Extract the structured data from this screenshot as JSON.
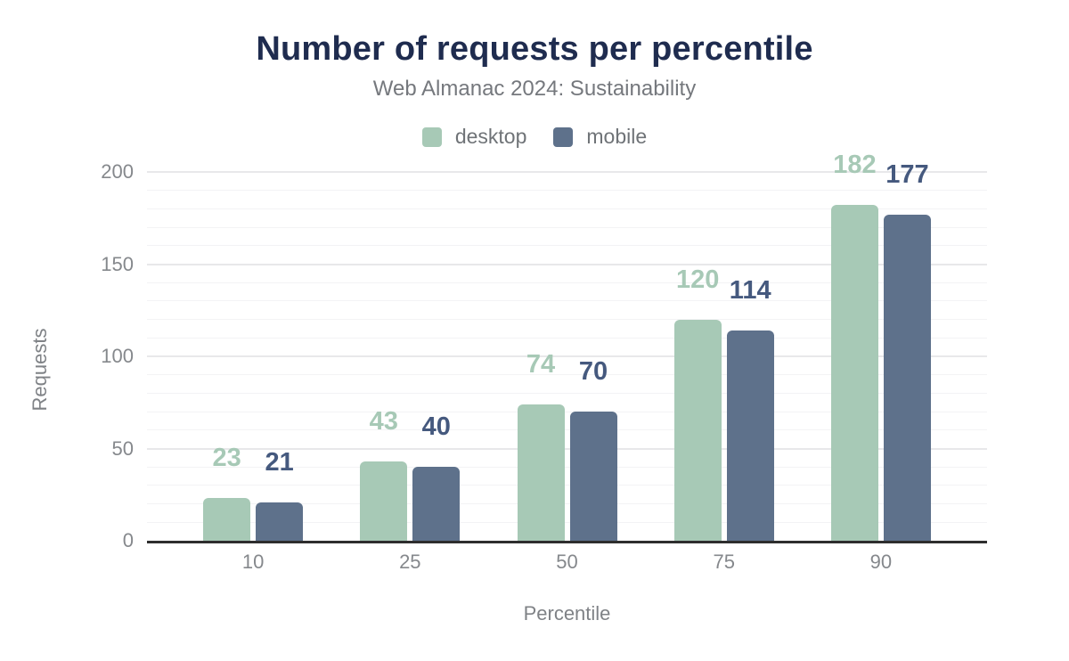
{
  "header": {
    "title": "Number of requests per percentile",
    "subtitle": "Web Almanac 2024: Sustainability"
  },
  "legend": [
    {
      "label": "desktop",
      "color": "#a7c9b6"
    },
    {
      "label": "mobile",
      "color": "#5e718b"
    }
  ],
  "axes": {
    "xlabel": "Percentile",
    "ylabel": "Requests"
  },
  "colors": {
    "title": "#1f2c4f",
    "subtitle": "#75787d",
    "desktop_bar": "#a7c9b6",
    "mobile_bar": "#5e718b",
    "desktop_label": "#a7c9b6",
    "mobile_label": "#45597e",
    "axis_line": "#2e2e2e",
    "tick_text": "#85888c"
  },
  "chart_data": {
    "type": "bar",
    "title": "Number of requests per percentile",
    "subtitle": "Web Almanac 2024: Sustainability",
    "categories": [
      "10",
      "25",
      "50",
      "75",
      "90"
    ],
    "series": [
      {
        "name": "desktop",
        "color": "#a7c9b6",
        "label_color": "#a7c9b6",
        "values": [
          23,
          43,
          74,
          120,
          182
        ]
      },
      {
        "name": "mobile",
        "color": "#5e718b",
        "label_color": "#45597e",
        "values": [
          21,
          40,
          70,
          114,
          177
        ]
      }
    ],
    "xlabel": "Percentile",
    "ylabel": "Requests",
    "ylim": [
      0,
      200
    ],
    "y_ticks": [
      0,
      50,
      100,
      150,
      200
    ],
    "minor_grid_step": 10,
    "grid": true,
    "legend_position": "top",
    "data_labels": true
  }
}
